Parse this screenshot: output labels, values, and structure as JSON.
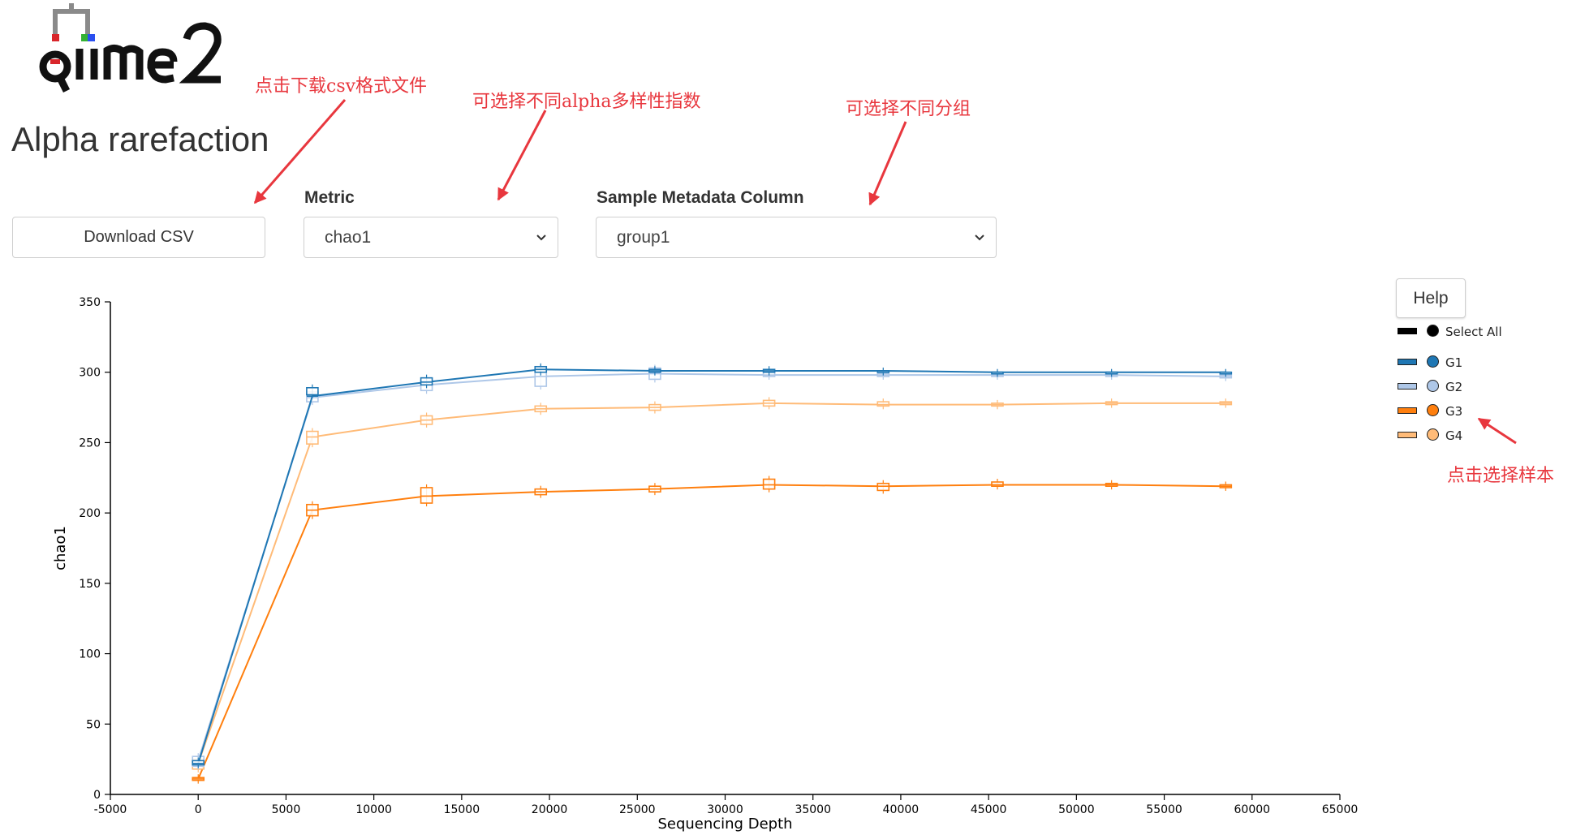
{
  "header": {
    "logo_text": "qiime2",
    "title": "Alpha rarefaction"
  },
  "controls": {
    "download_label": "Download CSV",
    "metric_label": "Metric",
    "metric_value": "chao1",
    "column_label": "Sample Metadata Column",
    "column_value": "group1"
  },
  "help": {
    "label": "Help"
  },
  "legend": {
    "select_all": "Select All",
    "items": [
      {
        "label": "G1",
        "color": "#1f77b4"
      },
      {
        "label": "G2",
        "color": "#aec7e8"
      },
      {
        "label": "G3",
        "color": "#ff7f0e"
      },
      {
        "label": "G4",
        "color": "#ffbb78"
      }
    ]
  },
  "annotations": {
    "download": "点击下载csv格式文件",
    "metric": "可选择不同alpha多样性指数",
    "group": "可选择不同分组",
    "legend": "点击选择样本"
  },
  "chart_data": {
    "type": "line",
    "xlabel": "Sequencing Depth",
    "ylabel": "chao1",
    "xlim": [
      -5000,
      65000
    ],
    "ylim": [
      0,
      350
    ],
    "xticks": [
      -5000,
      0,
      5000,
      10000,
      15000,
      20000,
      25000,
      30000,
      35000,
      40000,
      45000,
      50000,
      55000,
      60000,
      65000
    ],
    "yticks": [
      0,
      50,
      100,
      150,
      200,
      250,
      300,
      350
    ],
    "x": [
      1,
      6500,
      13000,
      19500,
      26000,
      32500,
      39000,
      45500,
      52000,
      58500
    ],
    "series": [
      {
        "name": "G1",
        "color": "#1f77b4",
        "values": [
          22,
          283,
          293,
          302,
          301,
          301,
          301,
          300,
          300,
          300
        ],
        "box": [
          [
            21,
            24
          ],
          [
            284,
            289
          ],
          [
            291,
            296
          ],
          [
            300,
            304
          ],
          [
            300,
            302
          ],
          [
            300,
            302
          ],
          [
            300,
            301
          ],
          [
            299,
            300
          ],
          [
            299,
            300
          ],
          [
            299,
            300
          ]
        ]
      },
      {
        "name": "G2",
        "color": "#aec7e8",
        "values": [
          24,
          282,
          291,
          297,
          299,
          298,
          298,
          298,
          298,
          297
        ],
        "box": [
          [
            20,
            27
          ],
          [
            279,
            286
          ],
          [
            287,
            294
          ],
          [
            290,
            303
          ],
          [
            295,
            303
          ],
          [
            297,
            300
          ],
          [
            297,
            299
          ],
          [
            297,
            299
          ],
          [
            297,
            299
          ],
          [
            296,
            298
          ]
        ]
      },
      {
        "name": "G3",
        "color": "#ff7f0e",
        "values": [
          11,
          202,
          212,
          215,
          217,
          220,
          219,
          220,
          220,
          219
        ],
        "box": [
          [
            10,
            12
          ],
          [
            198,
            206
          ],
          [
            207,
            218
          ],
          [
            213,
            217
          ],
          [
            215,
            219
          ],
          [
            217,
            224
          ],
          [
            216,
            221
          ],
          [
            219,
            222
          ],
          [
            219,
            221
          ],
          [
            218,
            220
          ]
        ]
      },
      {
        "name": "G4",
        "color": "#ffbb78",
        "values": [
          22,
          254,
          266,
          274,
          275,
          278,
          277,
          277,
          278,
          278
        ],
        "box": [
          [
            18,
            25
          ],
          [
            249,
            258
          ],
          [
            263,
            269
          ],
          [
            272,
            276
          ],
          [
            273,
            277
          ],
          [
            276,
            280
          ],
          [
            276,
            279
          ],
          [
            276,
            278
          ],
          [
            277,
            279
          ],
          [
            277,
            279
          ]
        ]
      }
    ],
    "grid": false,
    "legend_position": "right"
  }
}
